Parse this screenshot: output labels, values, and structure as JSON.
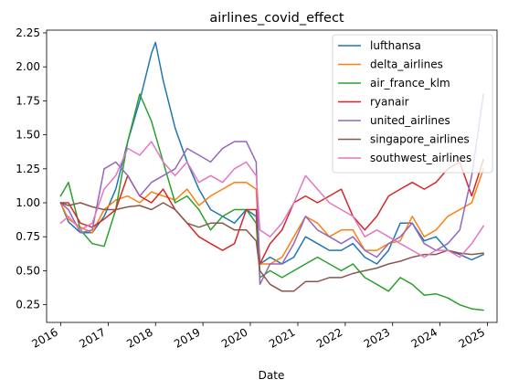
{
  "chart_data": {
    "type": "line",
    "title": "airlines_covid_effect",
    "xlabel": "Date",
    "ylabel": "",
    "xlim": [
      "2015-09-15",
      "2025-03-15"
    ],
    "ylim": [
      0.12,
      2.27
    ],
    "x_ticks": [
      "2016-01-01",
      "2017-01-01",
      "2018-01-01",
      "2019-01-01",
      "2020-01-01",
      "2021-01-01",
      "2022-01-01",
      "2023-01-01",
      "2024-01-01",
      "2025-01-01"
    ],
    "x_tick_labels": [
      "2016",
      "2017",
      "2018",
      "2019",
      "2020",
      "2021",
      "2022",
      "2023",
      "2024",
      "2025"
    ],
    "y_ticks": [
      0.25,
      0.5,
      0.75,
      1.0,
      1.25,
      1.5,
      1.75,
      2.0,
      2.25
    ],
    "y_tick_labels": [
      "0.25",
      "0.50",
      "0.75",
      "1.00",
      "1.25",
      "1.50",
      "1.75",
      "2.00",
      "2.25"
    ],
    "grid": false,
    "legend_position": "top-right",
    "series": [
      {
        "name": "lufthansa",
        "color": "#1f77b4",
        "points": [
          [
            "2016-01-01",
            1.0
          ],
          [
            "2016-03-01",
            0.86
          ],
          [
            "2016-06-01",
            0.78
          ],
          [
            "2016-09-01",
            0.78
          ],
          [
            "2016-12-01",
            0.9
          ],
          [
            "2017-03-01",
            1.1
          ],
          [
            "2017-06-01",
            1.45
          ],
          [
            "2017-09-01",
            1.75
          ],
          [
            "2017-12-01",
            2.1
          ],
          [
            "2018-01-01",
            2.18
          ],
          [
            "2018-03-01",
            1.9
          ],
          [
            "2018-06-01",
            1.55
          ],
          [
            "2018-09-01",
            1.3
          ],
          [
            "2018-12-01",
            1.1
          ],
          [
            "2019-03-01",
            0.95
          ],
          [
            "2019-06-01",
            0.9
          ],
          [
            "2019-09-01",
            0.85
          ],
          [
            "2019-12-01",
            0.95
          ],
          [
            "2020-02-15",
            0.9
          ],
          [
            "2020-03-15",
            0.55
          ],
          [
            "2020-06-01",
            0.6
          ],
          [
            "2020-09-01",
            0.55
          ],
          [
            "2020-12-01",
            0.6
          ],
          [
            "2021-03-01",
            0.75
          ],
          [
            "2021-06-01",
            0.7
          ],
          [
            "2021-09-01",
            0.65
          ],
          [
            "2021-12-01",
            0.65
          ],
          [
            "2022-03-01",
            0.7
          ],
          [
            "2022-06-01",
            0.6
          ],
          [
            "2022-09-01",
            0.55
          ],
          [
            "2022-12-01",
            0.65
          ],
          [
            "2023-03-01",
            0.85
          ],
          [
            "2023-06-01",
            0.85
          ],
          [
            "2023-09-01",
            0.72
          ],
          [
            "2023-12-01",
            0.75
          ],
          [
            "2024-03-01",
            0.65
          ],
          [
            "2024-06-01",
            0.62
          ],
          [
            "2024-09-01",
            0.58
          ],
          [
            "2024-12-01",
            0.62
          ]
        ]
      },
      {
        "name": "delta_airlines",
        "color": "#ff7f0e",
        "points": [
          [
            "2016-01-01",
            1.0
          ],
          [
            "2016-03-01",
            0.88
          ],
          [
            "2016-06-01",
            0.82
          ],
          [
            "2016-09-01",
            0.78
          ],
          [
            "2016-12-01",
            0.95
          ],
          [
            "2017-03-01",
            1.02
          ],
          [
            "2017-06-01",
            1.05
          ],
          [
            "2017-09-01",
            1.0
          ],
          [
            "2017-12-01",
            1.08
          ],
          [
            "2018-03-01",
            1.05
          ],
          [
            "2018-06-01",
            1.02
          ],
          [
            "2018-09-01",
            1.1
          ],
          [
            "2018-12-01",
            0.98
          ],
          [
            "2019-03-01",
            1.05
          ],
          [
            "2019-06-01",
            1.1
          ],
          [
            "2019-09-01",
            1.15
          ],
          [
            "2019-12-01",
            1.15
          ],
          [
            "2020-02-15",
            1.1
          ],
          [
            "2020-03-15",
            0.55
          ],
          [
            "2020-06-01",
            0.55
          ],
          [
            "2020-09-01",
            0.6
          ],
          [
            "2020-12-01",
            0.75
          ],
          [
            "2021-03-01",
            0.9
          ],
          [
            "2021-06-01",
            0.85
          ],
          [
            "2021-09-01",
            0.75
          ],
          [
            "2021-12-01",
            0.8
          ],
          [
            "2022-03-01",
            0.8
          ],
          [
            "2022-06-01",
            0.65
          ],
          [
            "2022-09-01",
            0.65
          ],
          [
            "2022-12-01",
            0.7
          ],
          [
            "2023-03-01",
            0.72
          ],
          [
            "2023-06-01",
            0.9
          ],
          [
            "2023-09-01",
            0.75
          ],
          [
            "2023-12-01",
            0.8
          ],
          [
            "2024-03-01",
            0.9
          ],
          [
            "2024-06-01",
            0.95
          ],
          [
            "2024-09-01",
            1.0
          ],
          [
            "2024-12-01",
            1.25
          ]
        ]
      },
      {
        "name": "air_france_klm",
        "color": "#2ca02c",
        "points": [
          [
            "2016-01-01",
            1.05
          ],
          [
            "2016-03-01",
            1.15
          ],
          [
            "2016-06-01",
            0.8
          ],
          [
            "2016-09-01",
            0.7
          ],
          [
            "2016-12-01",
            0.68
          ],
          [
            "2017-03-01",
            0.95
          ],
          [
            "2017-06-01",
            1.45
          ],
          [
            "2017-09-01",
            1.8
          ],
          [
            "2017-12-01",
            1.6
          ],
          [
            "2018-03-01",
            1.3
          ],
          [
            "2018-06-01",
            1.0
          ],
          [
            "2018-09-01",
            1.05
          ],
          [
            "2018-12-01",
            0.95
          ],
          [
            "2019-03-01",
            0.8
          ],
          [
            "2019-06-01",
            0.9
          ],
          [
            "2019-09-01",
            0.95
          ],
          [
            "2019-12-01",
            0.95
          ],
          [
            "2020-02-15",
            0.85
          ],
          [
            "2020-03-15",
            0.45
          ],
          [
            "2020-06-01",
            0.5
          ],
          [
            "2020-09-01",
            0.45
          ],
          [
            "2020-12-01",
            0.5
          ],
          [
            "2021-03-01",
            0.55
          ],
          [
            "2021-06-01",
            0.6
          ],
          [
            "2021-09-01",
            0.55
          ],
          [
            "2021-12-01",
            0.5
          ],
          [
            "2022-03-01",
            0.55
          ],
          [
            "2022-06-01",
            0.45
          ],
          [
            "2022-09-01",
            0.4
          ],
          [
            "2022-12-01",
            0.35
          ],
          [
            "2023-03-01",
            0.45
          ],
          [
            "2023-06-01",
            0.4
          ],
          [
            "2023-09-01",
            0.32
          ],
          [
            "2023-12-01",
            0.33
          ],
          [
            "2024-03-01",
            0.3
          ],
          [
            "2024-06-01",
            0.25
          ],
          [
            "2024-09-01",
            0.22
          ],
          [
            "2024-12-01",
            0.21
          ]
        ]
      },
      {
        "name": "ryanair",
        "color": "#d62728",
        "points": [
          [
            "2016-01-01",
            1.0
          ],
          [
            "2016-03-01",
            1.0
          ],
          [
            "2016-06-01",
            0.85
          ],
          [
            "2016-09-01",
            0.82
          ],
          [
            "2016-12-01",
            0.88
          ],
          [
            "2017-03-01",
            0.95
          ],
          [
            "2017-06-01",
            1.2
          ],
          [
            "2017-09-01",
            1.05
          ],
          [
            "2017-12-01",
            1.0
          ],
          [
            "2018-03-01",
            1.1
          ],
          [
            "2018-06-01",
            0.95
          ],
          [
            "2018-09-01",
            0.85
          ],
          [
            "2018-12-01",
            0.75
          ],
          [
            "2019-03-01",
            0.7
          ],
          [
            "2019-06-01",
            0.65
          ],
          [
            "2019-09-01",
            0.7
          ],
          [
            "2019-12-01",
            0.95
          ],
          [
            "2020-02-15",
            0.95
          ],
          [
            "2020-03-15",
            0.55
          ],
          [
            "2020-06-01",
            0.7
          ],
          [
            "2020-09-01",
            0.8
          ],
          [
            "2020-12-01",
            1.0
          ],
          [
            "2021-03-01",
            1.05
          ],
          [
            "2021-06-01",
            1.0
          ],
          [
            "2021-09-01",
            1.05
          ],
          [
            "2021-12-01",
            1.1
          ],
          [
            "2022-03-01",
            0.9
          ],
          [
            "2022-06-01",
            0.8
          ],
          [
            "2022-09-01",
            0.9
          ],
          [
            "2022-12-01",
            1.05
          ],
          [
            "2023-03-01",
            1.1
          ],
          [
            "2023-06-01",
            1.15
          ],
          [
            "2023-09-01",
            1.1
          ],
          [
            "2023-12-01",
            1.15
          ],
          [
            "2024-03-01",
            1.25
          ],
          [
            "2024-06-01",
            1.3
          ],
          [
            "2024-09-01",
            1.05
          ],
          [
            "2024-12-01",
            1.32
          ]
        ]
      },
      {
        "name": "united_airlines",
        "color": "#9467bd",
        "points": [
          [
            "2016-01-01",
            1.0
          ],
          [
            "2016-03-01",
            0.95
          ],
          [
            "2016-06-01",
            0.78
          ],
          [
            "2016-09-01",
            0.8
          ],
          [
            "2016-12-01",
            1.25
          ],
          [
            "2017-03-01",
            1.3
          ],
          [
            "2017-06-01",
            1.2
          ],
          [
            "2017-09-01",
            1.05
          ],
          [
            "2017-12-01",
            1.15
          ],
          [
            "2018-03-01",
            1.2
          ],
          [
            "2018-06-01",
            1.25
          ],
          [
            "2018-09-01",
            1.4
          ],
          [
            "2018-12-01",
            1.35
          ],
          [
            "2019-03-01",
            1.3
          ],
          [
            "2019-06-01",
            1.4
          ],
          [
            "2019-09-01",
            1.45
          ],
          [
            "2019-12-01",
            1.45
          ],
          [
            "2020-02-15",
            1.3
          ],
          [
            "2020-03-15",
            0.4
          ],
          [
            "2020-06-01",
            0.55
          ],
          [
            "2020-09-01",
            0.55
          ],
          [
            "2020-12-01",
            0.7
          ],
          [
            "2021-03-01",
            0.9
          ],
          [
            "2021-06-01",
            0.8
          ],
          [
            "2021-09-01",
            0.75
          ],
          [
            "2021-12-01",
            0.7
          ],
          [
            "2022-03-01",
            0.75
          ],
          [
            "2022-06-01",
            0.65
          ],
          [
            "2022-09-01",
            0.6
          ],
          [
            "2022-12-01",
            0.7
          ],
          [
            "2023-03-01",
            0.75
          ],
          [
            "2023-06-01",
            0.85
          ],
          [
            "2023-09-01",
            0.7
          ],
          [
            "2023-12-01",
            0.65
          ],
          [
            "2024-03-01",
            0.7
          ],
          [
            "2024-06-01",
            0.8
          ],
          [
            "2024-09-01",
            1.2
          ],
          [
            "2024-12-01",
            1.8
          ]
        ]
      },
      {
        "name": "singapore_airlines",
        "color": "#8c564b",
        "points": [
          [
            "2016-01-01",
            1.0
          ],
          [
            "2016-03-01",
            0.98
          ],
          [
            "2016-06-01",
            1.0
          ],
          [
            "2016-09-01",
            0.97
          ],
          [
            "2016-12-01",
            0.95
          ],
          [
            "2017-03-01",
            0.95
          ],
          [
            "2017-06-01",
            0.97
          ],
          [
            "2017-09-01",
            0.98
          ],
          [
            "2017-12-01",
            0.95
          ],
          [
            "2018-03-01",
            1.0
          ],
          [
            "2018-06-01",
            0.95
          ],
          [
            "2018-09-01",
            0.85
          ],
          [
            "2018-12-01",
            0.82
          ],
          [
            "2019-03-01",
            0.85
          ],
          [
            "2019-06-01",
            0.85
          ],
          [
            "2019-09-01",
            0.8
          ],
          [
            "2019-12-01",
            0.8
          ],
          [
            "2020-02-15",
            0.72
          ],
          [
            "2020-03-15",
            0.5
          ],
          [
            "2020-06-01",
            0.4
          ],
          [
            "2020-09-01",
            0.35
          ],
          [
            "2020-12-01",
            0.35
          ],
          [
            "2021-03-01",
            0.42
          ],
          [
            "2021-06-01",
            0.42
          ],
          [
            "2021-09-01",
            0.45
          ],
          [
            "2021-12-01",
            0.45
          ],
          [
            "2022-03-01",
            0.48
          ],
          [
            "2022-06-01",
            0.5
          ],
          [
            "2022-09-01",
            0.52
          ],
          [
            "2022-12-01",
            0.55
          ],
          [
            "2023-03-01",
            0.57
          ],
          [
            "2023-06-01",
            0.6
          ],
          [
            "2023-09-01",
            0.62
          ],
          [
            "2023-12-01",
            0.62
          ],
          [
            "2024-03-01",
            0.65
          ],
          [
            "2024-06-01",
            0.63
          ],
          [
            "2024-09-01",
            0.62
          ],
          [
            "2024-12-01",
            0.63
          ]
        ]
      },
      {
        "name": "southwest_airlines",
        "color": "#e377c2",
        "points": [
          [
            "2016-01-01",
            0.85
          ],
          [
            "2016-03-01",
            0.9
          ],
          [
            "2016-06-01",
            0.8
          ],
          [
            "2016-09-01",
            0.85
          ],
          [
            "2016-12-01",
            1.1
          ],
          [
            "2017-03-01",
            1.2
          ],
          [
            "2017-06-01",
            1.4
          ],
          [
            "2017-09-01",
            1.35
          ],
          [
            "2017-12-01",
            1.45
          ],
          [
            "2018-03-01",
            1.3
          ],
          [
            "2018-06-01",
            1.2
          ],
          [
            "2018-09-01",
            1.3
          ],
          [
            "2018-12-01",
            1.15
          ],
          [
            "2019-03-01",
            1.2
          ],
          [
            "2019-06-01",
            1.15
          ],
          [
            "2019-09-01",
            1.25
          ],
          [
            "2019-12-01",
            1.3
          ],
          [
            "2020-02-15",
            1.2
          ],
          [
            "2020-03-15",
            0.8
          ],
          [
            "2020-06-01",
            0.75
          ],
          [
            "2020-09-01",
            0.85
          ],
          [
            "2020-12-01",
            1.0
          ],
          [
            "2021-03-01",
            1.2
          ],
          [
            "2021-06-01",
            1.1
          ],
          [
            "2021-09-01",
            1.0
          ],
          [
            "2021-12-01",
            0.95
          ],
          [
            "2022-03-01",
            0.9
          ],
          [
            "2022-06-01",
            0.75
          ],
          [
            "2022-09-01",
            0.8
          ],
          [
            "2022-12-01",
            0.75
          ],
          [
            "2023-03-01",
            0.7
          ],
          [
            "2023-06-01",
            0.65
          ],
          [
            "2023-09-01",
            0.6
          ],
          [
            "2023-12-01",
            0.65
          ],
          [
            "2024-03-01",
            0.65
          ],
          [
            "2024-06-01",
            0.6
          ],
          [
            "2024-09-01",
            0.7
          ],
          [
            "2024-12-01",
            0.83
          ]
        ]
      }
    ]
  }
}
